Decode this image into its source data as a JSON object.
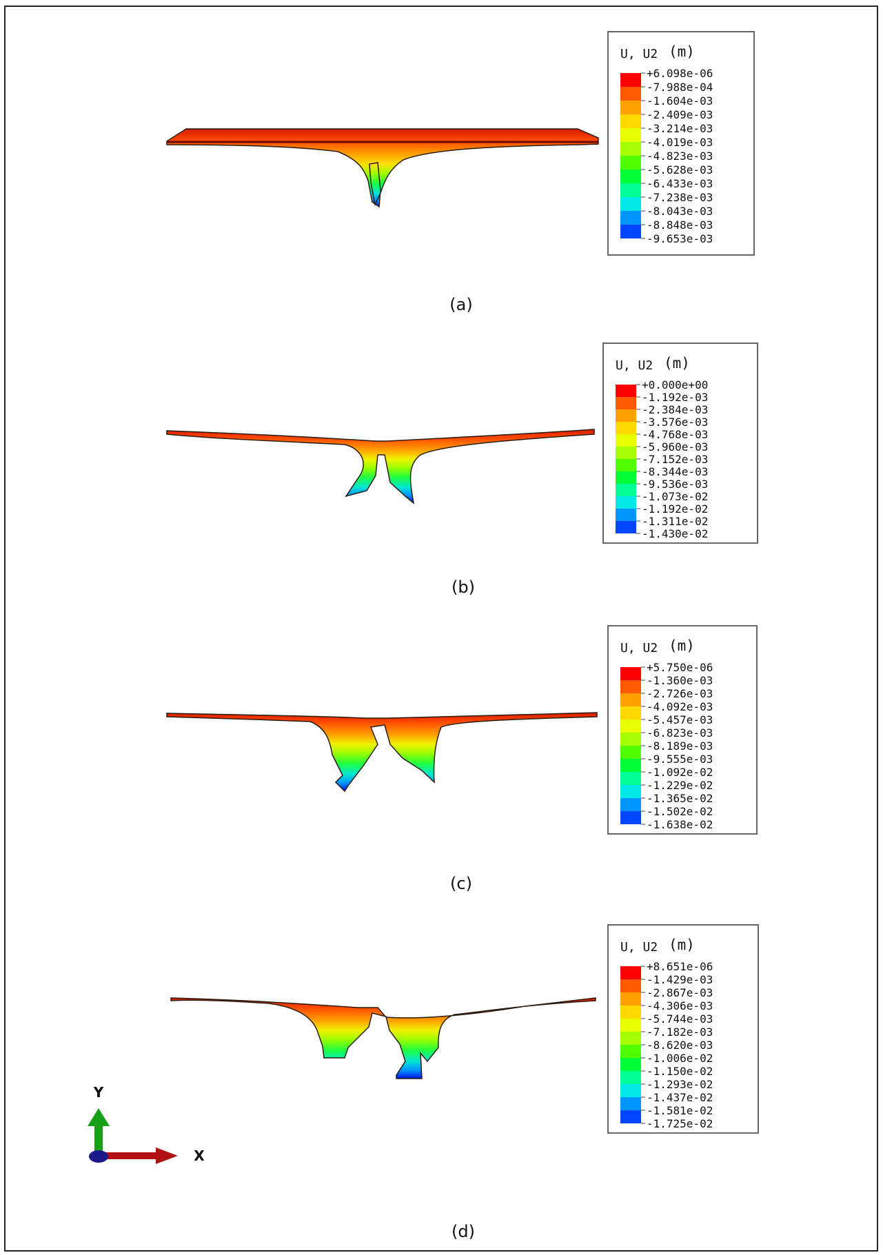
{
  "panels": [
    {
      "id": "a",
      "caption": "(a)",
      "legend": {
        "title": "U, U2",
        "unit": "(m)",
        "levels": [
          "+6.098e-06",
          "-7.988e-04",
          "-1.604e-03",
          "-2.409e-03",
          "-3.214e-03",
          "-4.019e-03",
          "-4.823e-03",
          "-5.628e-03",
          "-6.433e-03",
          "-7.238e-03",
          "-8.043e-03",
          "-8.848e-03",
          "-9.653e-03"
        ]
      }
    },
    {
      "id": "b",
      "caption": "(b)",
      "legend": {
        "title": "U, U2",
        "unit": "(m)",
        "levels": [
          "+0.000e+00",
          "-1.192e-03",
          "-2.384e-03",
          "-3.576e-03",
          "-4.768e-03",
          "-5.960e-03",
          "-7.152e-03",
          "-8.344e-03",
          "-9.536e-03",
          "-1.073e-02",
          "-1.192e-02",
          "-1.311e-02",
          "-1.430e-02"
        ]
      }
    },
    {
      "id": "c",
      "caption": "(c)",
      "legend": {
        "title": "U, U2",
        "unit": "(m)",
        "levels": [
          "+5.750e-06",
          "-1.360e-03",
          "-2.726e-03",
          "-4.092e-03",
          "-5.457e-03",
          "-6.823e-03",
          "-8.189e-03",
          "-9.555e-03",
          "-1.092e-02",
          "-1.229e-02",
          "-1.365e-02",
          "-1.502e-02",
          "-1.638e-02"
        ]
      }
    },
    {
      "id": "d",
      "caption": "(d)",
      "legend": {
        "title": "U, U2",
        "unit": "(m)",
        "levels": [
          "+8.651e-06",
          "-1.429e-03",
          "-2.867e-03",
          "-4.306e-03",
          "-5.744e-03",
          "-7.182e-03",
          "-8.620e-03",
          "-1.006e-02",
          "-1.150e-02",
          "-1.293e-02",
          "-1.437e-02",
          "-1.581e-02",
          "-1.725e-02"
        ]
      }
    }
  ],
  "colorbar": [
    "#ff0000",
    "#ff5a00",
    "#ffa200",
    "#ffd800",
    "#e8ff00",
    "#a4ff00",
    "#4fff00",
    "#00ff35",
    "#00ff95",
    "#00e8e8",
    "#0096ff",
    "#0046ff",
    "#0000ff"
  ],
  "triad": {
    "x_label": "X",
    "y_label": "Y",
    "x_color": "#b01010",
    "y_color": "#18a018",
    "origin_color": "#1a1a8a"
  }
}
